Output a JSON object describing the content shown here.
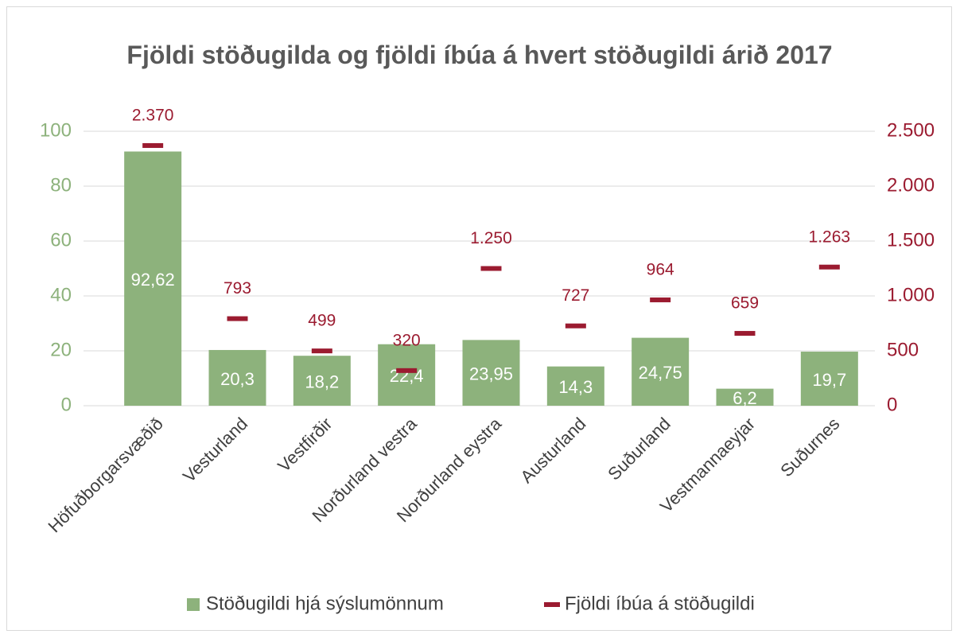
{
  "chart_data": {
    "type": "bar",
    "title": "Fjöldi stöðugilda og fjöldi íbúa á hvert stöðugildi árið 2017",
    "categories": [
      "Höfuðborgarsvæðið",
      "Vesturland",
      "Vestfirðir",
      "Norðurland vestra",
      "Norðurland eystra",
      "Austurland",
      "Suðurland",
      "Vestmannaeyjar",
      "Suðurnes"
    ],
    "series": [
      {
        "name": "Stöðugildi hjá sýslumönnum",
        "type": "bar",
        "color": "#8db27c",
        "values": [
          92.62,
          20.3,
          18.2,
          22.4,
          23.95,
          14.3,
          24.75,
          6.2,
          19.7
        ],
        "value_labels": [
          "92,62",
          "20,3",
          "18,2",
          "22,4",
          "23,95",
          "14,3",
          "24,75",
          "6,2",
          "19,7"
        ]
      },
      {
        "name": "Fjöldi íbúa á stöðugildi",
        "type": "dash",
        "axis": "y2",
        "color": "#9b1b30",
        "values": [
          2370,
          793,
          499,
          320,
          1250,
          727,
          964,
          659,
          1263
        ],
        "value_labels": [
          "2.370",
          "793",
          "499",
          "320",
          "1.250",
          "727",
          "964",
          "659",
          "1.263"
        ]
      }
    ],
    "ylim": [
      0,
      100
    ],
    "yticks": [
      0,
      20,
      40,
      60,
      80,
      100
    ],
    "ytick_color": "#8db27c",
    "y2lim": [
      0,
      2500
    ],
    "y2ticks": [
      0,
      500,
      {
        "value": 1000,
        "label": "1.000"
      },
      {
        "value": 1500,
        "label": "1.500"
      },
      {
        "value": 2000,
        "label": "2.000"
      },
      {
        "value": 2500,
        "label": "2.500"
      }
    ],
    "y2tick_color": "#9b1b30",
    "grid": true,
    "legend": "bottom"
  }
}
